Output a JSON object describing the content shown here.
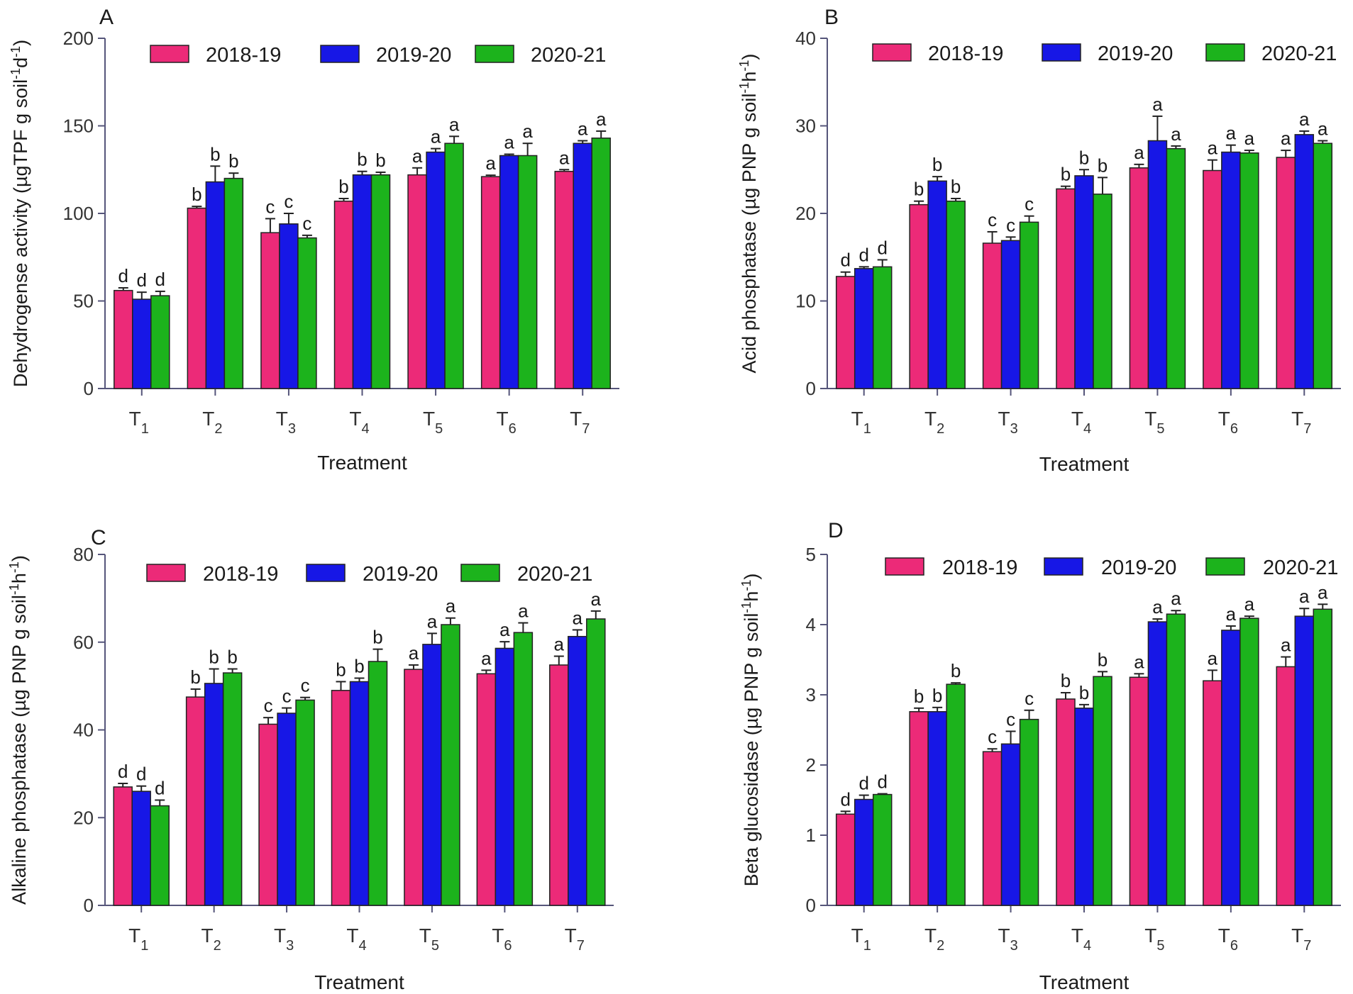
{
  "colors": {
    "s1": "#ec2a78",
    "s2": "#1717e6",
    "s3": "#1cb31c",
    "axis": "#55557a",
    "legend_text_blue": "#23236b",
    "legend_text_black": "#1a1a1a"
  },
  "chart_data": [
    {
      "type": "bar",
      "panel": "A",
      "xlabel": "Treatment",
      "ylabel": "Dehydrogense activity (µgTPF g soil⁻¹d⁻¹)",
      "ylim": [
        0,
        200
      ],
      "yticks": [
        0,
        50,
        100,
        150,
        200
      ],
      "categories": [
        "T₁",
        "T₂",
        "T₃",
        "T₄",
        "T₅",
        "T₆",
        "T₇"
      ],
      "legend_text_color": "legend_text_black",
      "series": [
        {
          "name": "2018-19",
          "values": [
            56,
            103,
            89,
            107,
            122,
            121,
            124
          ],
          "errors": [
            1.5,
            1,
            8,
            1.5,
            4,
            0.8,
            1
          ],
          "letters": [
            "d",
            "b",
            "c",
            "b",
            "a",
            "a",
            "a"
          ]
        },
        {
          "name": "2019-20",
          "values": [
            51,
            118,
            94,
            122,
            135,
            133,
            140
          ],
          "errors": [
            4,
            9,
            6,
            2,
            2,
            0.8,
            1.5
          ],
          "letters": [
            "d",
            "b",
            "c",
            "b",
            "a",
            "a",
            "a"
          ]
        },
        {
          "name": "2020-21",
          "values": [
            53,
            120,
            86,
            122,
            140,
            133,
            143
          ],
          "errors": [
            2.5,
            3,
            1.5,
            1.5,
            4,
            7,
            4
          ],
          "letters": [
            "d",
            "b",
            "c",
            "b",
            "a",
            "a",
            "a"
          ]
        }
      ]
    },
    {
      "type": "bar",
      "panel": "B",
      "xlabel": "Treatment",
      "ylabel": "Acid phosphatase (µg PNP g soil⁻¹h⁻¹)",
      "ylim": [
        0,
        40
      ],
      "yticks": [
        0,
        10,
        20,
        30,
        40
      ],
      "categories": [
        "T₁",
        "T₂",
        "T₃",
        "T₄",
        "T₅",
        "T₆",
        "T₇"
      ],
      "legend_text_color": "legend_text_blue",
      "series": [
        {
          "name": "2018-19",
          "values": [
            12.8,
            21,
            16.6,
            22.8,
            25.2,
            24.9,
            26.4
          ],
          "errors": [
            0.5,
            0.4,
            1.3,
            0.3,
            0.4,
            1.2,
            0.8
          ],
          "letters": [
            "d",
            "b",
            "c",
            "b",
            "a",
            "a",
            "a"
          ]
        },
        {
          "name": "2019-20",
          "values": [
            13.7,
            23.7,
            16.9,
            24.3,
            28.3,
            27,
            29
          ],
          "errors": [
            0.2,
            0.5,
            0.4,
            0.7,
            2.8,
            0.8,
            0.4
          ],
          "letters": [
            "d",
            "b",
            "c",
            "b",
            "a",
            "a",
            "a"
          ]
        },
        {
          "name": "2020-21",
          "values": [
            13.9,
            21.4,
            19,
            22.2,
            27.4,
            26.9,
            28
          ],
          "errors": [
            0.8,
            0.3,
            0.7,
            1.9,
            0.3,
            0.3,
            0.3
          ],
          "letters": [
            "d",
            "b",
            "c",
            "b",
            "a",
            "a",
            "a"
          ]
        }
      ]
    },
    {
      "type": "bar",
      "panel": "C",
      "xlabel": "Treatment",
      "ylabel": "Alkaline phosphatase (µg PNP g soil⁻¹h⁻¹)",
      "ylim": [
        0,
        80
      ],
      "yticks": [
        0,
        20,
        40,
        60,
        80
      ],
      "categories": [
        "T₁",
        "T₂",
        "T₃",
        "T₄",
        "T₅",
        "T₆",
        "T₇"
      ],
      "legend_text_color": "legend_text_blue",
      "series": [
        {
          "name": "2018-19",
          "values": [
            27,
            47.5,
            41.3,
            49,
            53.8,
            52.8,
            54.8
          ],
          "errors": [
            0.8,
            1.8,
            1.5,
            2,
            1,
            0.8,
            2
          ],
          "letters": [
            "d",
            "b",
            "c",
            "b",
            "a",
            "a",
            "a"
          ]
        },
        {
          "name": "2019-20",
          "values": [
            26,
            50.6,
            43.8,
            51,
            59.5,
            58.6,
            61.3
          ],
          "errors": [
            1.2,
            3.3,
            1.2,
            0.8,
            2.5,
            1.5,
            1.5
          ],
          "letters": [
            "d",
            "b",
            "c",
            "b",
            "a",
            "a",
            "a"
          ]
        },
        {
          "name": "2020-21",
          "values": [
            22.7,
            53,
            46.8,
            55.6,
            64,
            62.2,
            65.3
          ],
          "errors": [
            1.3,
            0.9,
            0.6,
            2.8,
            1.5,
            2.2,
            1.8
          ],
          "letters": [
            "d",
            "b",
            "c",
            "b",
            "a",
            "a",
            "a"
          ]
        }
      ]
    },
    {
      "type": "bar",
      "panel": "D",
      "xlabel": "Treatment",
      "ylabel": "Beta glucosidase (µg PNP g soil⁻¹h⁻¹)",
      "ylim": [
        0,
        5
      ],
      "yticks": [
        0,
        1,
        2,
        3,
        4,
        5
      ],
      "categories": [
        "T₁",
        "T₂",
        "T₃",
        "T₄",
        "T₅",
        "T₆",
        "T₇"
      ],
      "legend_text_color": "legend_text_black",
      "series": [
        {
          "name": "2018-19",
          "values": [
            1.3,
            2.76,
            2.19,
            2.94,
            3.25,
            3.2,
            3.4
          ],
          "errors": [
            0.04,
            0.05,
            0.04,
            0.09,
            0.05,
            0.15,
            0.14
          ],
          "letters": [
            "d",
            "b",
            "c",
            "b",
            "a",
            "a",
            "a"
          ]
        },
        {
          "name": "2019-20",
          "values": [
            1.51,
            2.76,
            2.3,
            2.81,
            4.04,
            3.92,
            4.12
          ],
          "errors": [
            0.06,
            0.06,
            0.18,
            0.05,
            0.04,
            0.06,
            0.11
          ],
          "letters": [
            "d",
            "b",
            "c",
            "b",
            "a",
            "a",
            "a"
          ]
        },
        {
          "name": "2020-21",
          "values": [
            1.58,
            3.15,
            2.65,
            3.26,
            4.15,
            4.09,
            4.22
          ],
          "errors": [
            0.01,
            0.02,
            0.13,
            0.07,
            0.05,
            0.03,
            0.07
          ],
          "letters": [
            "d",
            "b",
            "c",
            "b",
            "a",
            "a",
            "a"
          ]
        }
      ]
    }
  ]
}
